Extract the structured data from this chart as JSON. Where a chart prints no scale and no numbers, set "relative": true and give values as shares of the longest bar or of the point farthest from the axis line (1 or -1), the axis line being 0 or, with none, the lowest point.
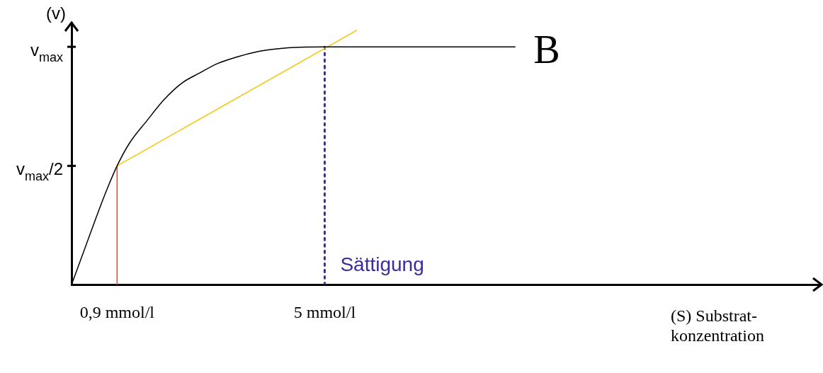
{
  "chart_data": {
    "type": "line",
    "relative": true,
    "title": "B",
    "xlabel": "(S) Substrat-konzentration",
    "ylabel": "(v)",
    "xlim": [
      0,
      14.8
    ],
    "xticks": [
      {
        "value": 0.9,
        "label": "0,9 mmol/l"
      },
      {
        "value": 5,
        "label": "5 mmol/l"
      }
    ],
    "legend": false,
    "marker": "none",
    "series": [
      {
        "color": "#000000",
        "x": [
          0,
          0.24,
          0.65,
          0.9,
          1.14,
          1.49,
          1.84,
          2.19,
          2.53,
          2.88,
          3.23,
          3.58,
          3.93,
          4.28,
          4.62,
          5,
          8.76
        ],
        "values": [
          0,
          0.13,
          0.35,
          0.467,
          0.555,
          0.645,
          0.73,
          0.794,
          0.832,
          0.869,
          0.893,
          0.912,
          0.924,
          0.931,
          0.934,
          0.935,
          0.935
        ]
      },
      {
        "color": "#f5c400",
        "x": [
          0.9,
          5.63
        ],
        "values": [
          0.467,
          1
        ]
      },
      {
        "color": "#e8402a",
        "x": [
          0.9,
          0.9
        ],
        "values": [
          0,
          0.467
        ]
      },
      {
        "color": "#3a2ca0",
        "x": [
          5,
          5
        ],
        "values": [
          0,
          0.935
        ],
        "line_style": "dotted"
      }
    ],
    "annotations": [
      "v$_{max}$",
      "v$_{max}$/2",
      {
        "text": "Sättigung",
        "x": 5,
        "y": 0.03
      }
    ]
  }
}
